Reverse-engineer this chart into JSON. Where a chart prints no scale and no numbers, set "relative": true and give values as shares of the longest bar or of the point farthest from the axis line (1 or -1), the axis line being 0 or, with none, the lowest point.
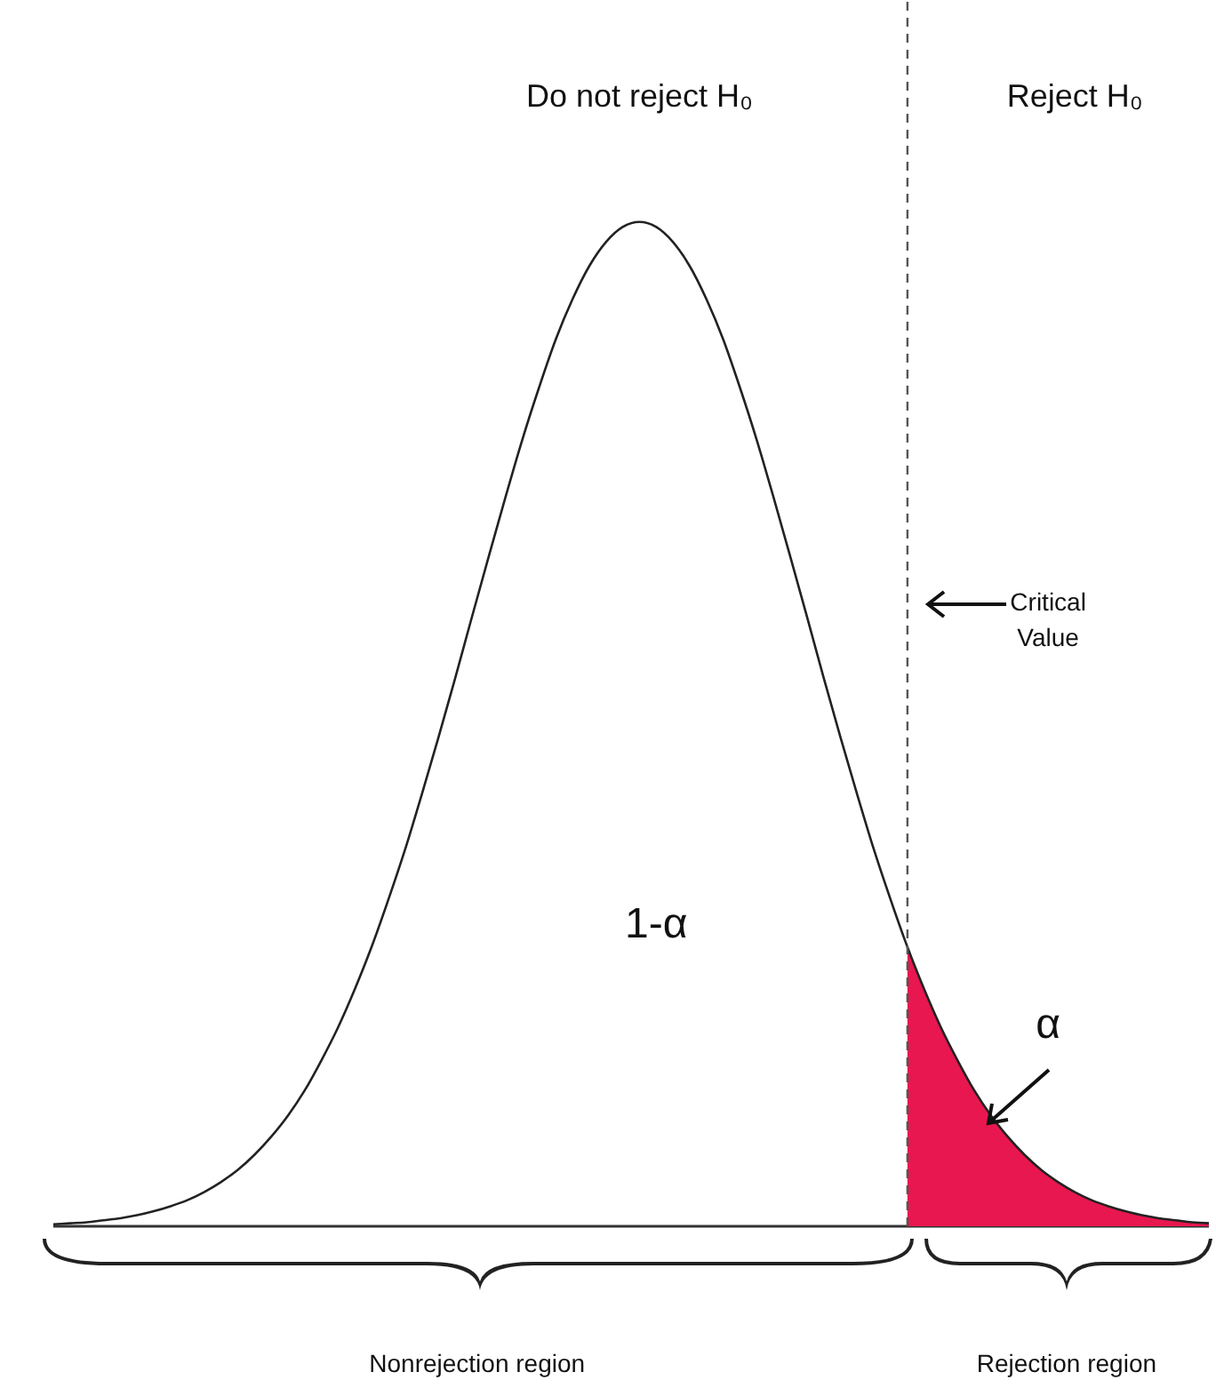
{
  "chart_data": {
    "type": "line",
    "relative": true,
    "categories": [
      null,
      null,
      null,
      null,
      null,
      null,
      null,
      null,
      null,
      null,
      null,
      null,
      null,
      null,
      null,
      null,
      null,
      null,
      null,
      null,
      null,
      null,
      null,
      null,
      null,
      null,
      null,
      null,
      null,
      null,
      null,
      null,
      null,
      null,
      null,
      null,
      null,
      null,
      null,
      null,
      null,
      null,
      null,
      null,
      null,
      null,
      null,
      null,
      null,
      null,
      null,
      null,
      null,
      null,
      null,
      null,
      null,
      null,
      null,
      null,
      null,
      null,
      null,
      null,
      null,
      null,
      null,
      null,
      null,
      null
    ],
    "series": [
      {
        "color": "#222222",
        "values": [
          0.002,
          0.003,
          0.004,
          0.006,
          0.008,
          0.011,
          0.015,
          0.02,
          0.026,
          0.034,
          0.044,
          0.056,
          0.071,
          0.089,
          0.11,
          0.135,
          0.165,
          0.198,
          0.236,
          0.278,
          0.325,
          0.375,
          0.43,
          0.487,
          0.546,
          0.607,
          0.667,
          0.726,
          0.783,
          0.835,
          0.883,
          0.923,
          0.956,
          0.98,
          0.995,
          1.0,
          0.995,
          0.98,
          0.956,
          0.923,
          0.883,
          0.835,
          0.783,
          0.726,
          0.667,
          0.607,
          0.546,
          0.487,
          0.43,
          0.375,
          0.325,
          0.278,
          0.236,
          0.198,
          0.165,
          0.135,
          0.11,
          0.089,
          0.071,
          0.056,
          0.044,
          0.034,
          0.026,
          0.02,
          0.015,
          0.011,
          0.008,
          0.006,
          0.004,
          0.003
        ]
      },
      {
        "type": "area",
        "color": "#e8174f",
        "values": [
          null,
          null,
          null,
          null,
          null,
          null,
          null,
          null,
          null,
          null,
          null,
          null,
          null,
          null,
          null,
          null,
          null,
          null,
          null,
          null,
          null,
          null,
          null,
          null,
          null,
          null,
          null,
          null,
          null,
          null,
          null,
          null,
          null,
          null,
          null,
          null,
          null,
          null,
          null,
          null,
          null,
          null,
          null,
          null,
          null,
          null,
          null,
          null,
          null,
          null,
          null,
          0.278,
          0.236,
          0.198,
          0.165,
          0.135,
          0.11,
          0.089,
          0.071,
          0.056,
          0.044,
          0.034,
          0.026,
          0.02,
          0.015,
          0.011,
          0.008,
          0.006,
          0.004,
          0.003
        ]
      }
    ],
    "annotations": [
      "Do not reject H₀",
      "Reject H₀",
      "1-α",
      "α",
      "Nonrejection region",
      "Rejection region",
      "Critical Value"
    ]
  }
}
